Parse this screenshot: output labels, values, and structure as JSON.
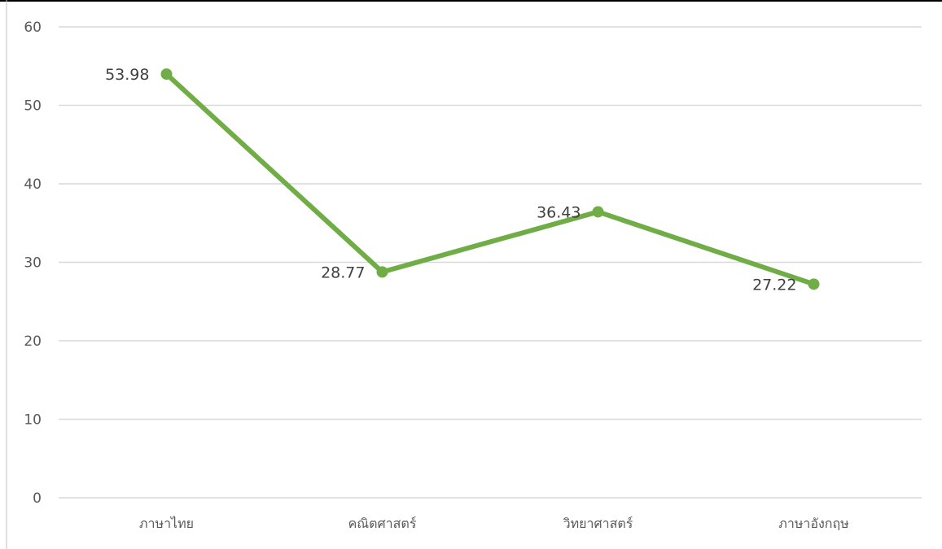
{
  "chart_data": {
    "type": "line",
    "categories": [
      "ภาษาไทย",
      "คณิตศาสตร์",
      "วิทยาศาสตร์",
      "ภาษาอังกฤษ"
    ],
    "series": [
      {
        "values": [
          53.98,
          28.77,
          36.43,
          27.22
        ],
        "labels": [
          "53.98",
          "28.77",
          "36.43",
          "27.22"
        ]
      }
    ],
    "ylim": [
      0,
      60
    ],
    "yticks": [
      0,
      10,
      20,
      30,
      40,
      50,
      60
    ],
    "title": "",
    "xlabel": "",
    "ylabel": "",
    "grid": true,
    "legend": "none",
    "colors": {
      "line": "#70ad47",
      "grid": "#d9d9d9",
      "tick_text": "#595959",
      "data_label_text": "#404040"
    }
  }
}
